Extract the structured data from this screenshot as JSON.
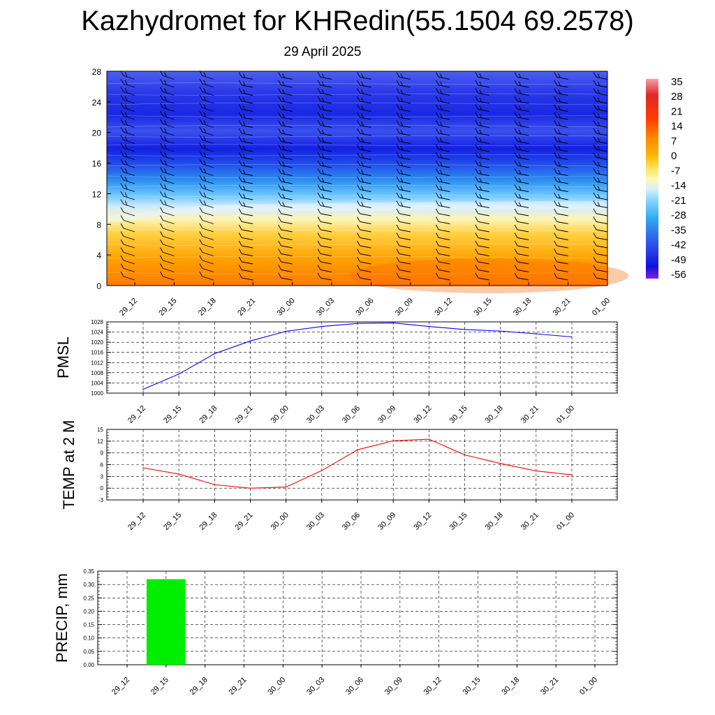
{
  "header": {
    "title": "Kazhydromet for KHRedin(55.1504 69.2578)",
    "date": "29 April 2025"
  },
  "colors": {
    "pmsl_line": "#0000ff",
    "temp_line": "#ff0000",
    "precip_bar": "#00ee00",
    "barb": "#000000"
  },
  "chart_data": [
    {
      "type": "heatmap",
      "title": "",
      "x_ticks": [
        "29_12",
        "29_15",
        "29_18",
        "29_21",
        "30_00",
        "30_03",
        "30_06",
        "30_09",
        "30_12",
        "30_15",
        "30_18",
        "30_21",
        "01_00"
      ],
      "y_ticks": [
        "0",
        "4",
        "8",
        "12",
        "16",
        "20",
        "24",
        "28"
      ],
      "ylim": [
        0,
        28
      ],
      "colorbar": {
        "labels": [
          "35",
          "28",
          "21",
          "14",
          "7",
          "0",
          "-7",
          "-14",
          "-21",
          "-28",
          "-35",
          "-42",
          "-49",
          "-56"
        ],
        "colors": [
          "#f4a0a8",
          "#e02828",
          "#ff3c00",
          "#ff8c00",
          "#ffb400",
          "#ffe050",
          "#fff8b0",
          "#d8f0ff",
          "#78d0ff",
          "#30a8f0",
          "#3070f0",
          "#2840e8",
          "#1010e0",
          "#8020e0"
        ]
      },
      "wind_barbs": "shown"
    },
    {
      "type": "line",
      "ylabel": "PMSL",
      "categories": [
        "29_12",
        "29_15",
        "29_18",
        "29_21",
        "30_00",
        "30_03",
        "30_06",
        "30_09",
        "30_12",
        "30_15",
        "30_18",
        "30_21",
        "01_00"
      ],
      "values": [
        1001.5,
        1007.5,
        1015.5,
        1020.5,
        1024.3,
        1026.2,
        1027.4,
        1027.6,
        1026.2,
        1025.0,
        1024.4,
        1023.3,
        1022.1
      ],
      "ylim": [
        1000,
        1028
      ],
      "y_ticks": [
        "1000",
        "1004",
        "1008",
        "1012",
        "1016",
        "1020",
        "1024",
        "1028"
      ],
      "grid": true
    },
    {
      "type": "line",
      "ylabel": "TEMP at 2 M",
      "categories": [
        "29_12",
        "29_15",
        "29_18",
        "29_21",
        "30_00",
        "30_03",
        "30_06",
        "30_09",
        "30_12",
        "30_15",
        "30_18",
        "30_21",
        "01_00"
      ],
      "values": [
        5.2,
        3.6,
        0.9,
        0.0,
        0.3,
        4.5,
        9.8,
        12.1,
        12.5,
        8.5,
        6.3,
        4.4,
        3.4
      ],
      "ylim": [
        -3,
        15
      ],
      "y_ticks": [
        "-3",
        "0",
        "3",
        "6",
        "9",
        "12",
        "15"
      ],
      "grid": true
    },
    {
      "type": "bar",
      "ylabel": "PRECIP, mm",
      "categories": [
        "29_12",
        "29_15",
        "29_18",
        "29_21",
        "30_00",
        "30_03",
        "30_06",
        "30_09",
        "30_12",
        "30_15",
        "30_18",
        "30_21",
        "01_00"
      ],
      "values": [
        0,
        0.32,
        0,
        0,
        0,
        0,
        0,
        0,
        0,
        0,
        0,
        0,
        0
      ],
      "ylim": [
        0,
        0.35
      ],
      "y_ticks": [
        "0.00",
        "0.05",
        "0.10",
        "0.15",
        "0.20",
        "0.25",
        "0.30",
        "0.35"
      ],
      "grid": true
    }
  ]
}
